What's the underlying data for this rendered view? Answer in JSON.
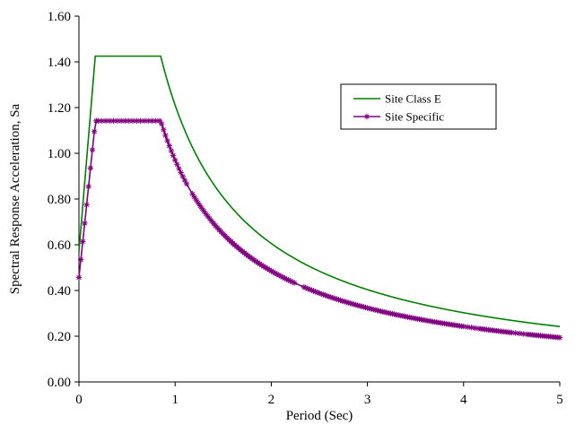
{
  "chart_data": {
    "type": "line",
    "xlabel": "Period (Sec)",
    "ylabel": "Spectral Response Acceleration, Sa",
    "xlim": [
      0,
      5
    ],
    "ylim": [
      0,
      1.6
    ],
    "x_ticks": [
      "0",
      "1",
      "2",
      "3",
      "4",
      "5"
    ],
    "y_ticks": [
      "0.00",
      "0.20",
      "0.40",
      "0.60",
      "0.80",
      "1.00",
      "1.20",
      "1.40",
      "1.60"
    ],
    "grid": false,
    "legend_position": "top-right",
    "series": [
      {
        "name": "Site Class E",
        "color": "#008000",
        "marker": "none",
        "points": [
          [
            0,
            0.57
          ],
          [
            0.17,
            1.425
          ],
          [
            0.85,
            1.425
          ],
          [
            0.9,
            1.346
          ],
          [
            1.0,
            1.211
          ],
          [
            1.2,
            1.009
          ],
          [
            1.4,
            0.865
          ],
          [
            1.6,
            0.757
          ],
          [
            1.8,
            0.673
          ],
          [
            2.0,
            0.606
          ],
          [
            2.5,
            0.485
          ],
          [
            3.0,
            0.404
          ],
          [
            3.5,
            0.346
          ],
          [
            4.0,
            0.303
          ],
          [
            4.5,
            0.269
          ],
          [
            5.0,
            0.242
          ]
        ]
      },
      {
        "name": "Site Specific",
        "color": "#800080",
        "marker": "asterisk",
        "points": [
          [
            0,
            0.457
          ],
          [
            0.02,
            0.535
          ],
          [
            0.04,
            0.614
          ],
          [
            0.06,
            0.694
          ],
          [
            0.08,
            0.775
          ],
          [
            0.1,
            0.855
          ],
          [
            0.12,
            0.935
          ],
          [
            0.14,
            1.015
          ],
          [
            0.16,
            1.095
          ],
          [
            0.18,
            1.142
          ],
          [
            0.2,
            1.142
          ],
          [
            0.25,
            1.142
          ],
          [
            0.3,
            1.142
          ],
          [
            0.35,
            1.142
          ],
          [
            0.4,
            1.142
          ],
          [
            0.45,
            1.142
          ],
          [
            0.5,
            1.142
          ],
          [
            0.55,
            1.142
          ],
          [
            0.6,
            1.142
          ],
          [
            0.65,
            1.142
          ],
          [
            0.7,
            1.142
          ],
          [
            0.75,
            1.142
          ],
          [
            0.8,
            1.142
          ],
          [
            0.85,
            1.142
          ],
          [
            0.9,
            1.079
          ],
          [
            1.0,
            0.971
          ],
          [
            1.2,
            0.809
          ],
          [
            1.4,
            0.694
          ],
          [
            1.6,
            0.607
          ],
          [
            1.8,
            0.539
          ],
          [
            2.0,
            0.486
          ],
          [
            2.5,
            0.388
          ],
          [
            3.0,
            0.324
          ],
          [
            3.5,
            0.277
          ],
          [
            4.0,
            0.243
          ],
          [
            4.5,
            0.216
          ],
          [
            5.0,
            0.194
          ]
        ]
      }
    ]
  }
}
